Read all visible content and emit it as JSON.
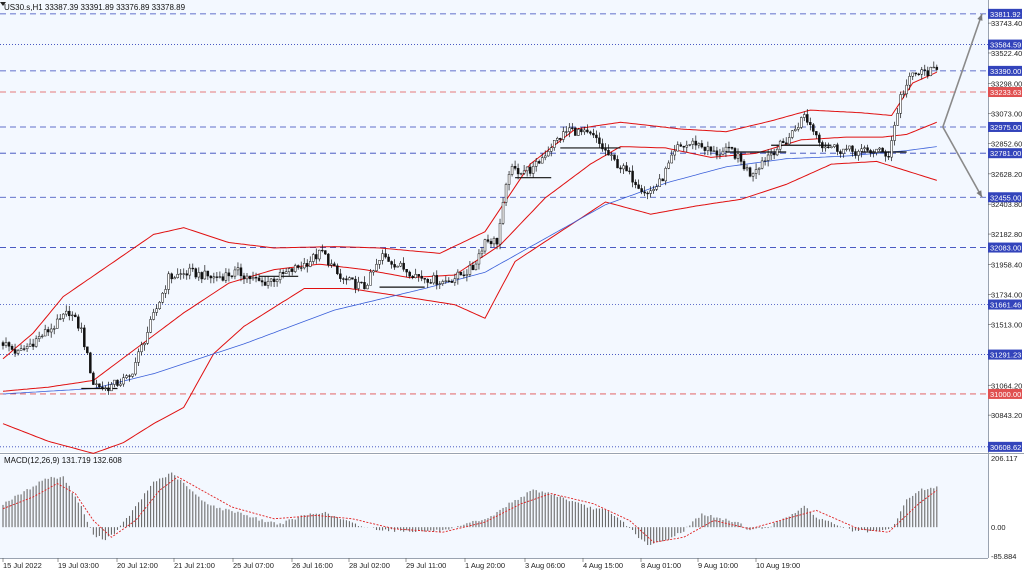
{
  "chart_data": [
    {
      "type": "candlestick",
      "header": "US30.s,H1  33387.39 33391.89 33376.89 33378.89",
      "price_axis_ticks": [
        "33743.40",
        "33522.40",
        "33298.00",
        "33073.00",
        "32852.60",
        "32628.20",
        "32403.80",
        "32182.80",
        "31958.40",
        "31734.00",
        "31513.00",
        "31064.20",
        "30843.20"
      ],
      "ylim": [
        30600,
        33870
      ],
      "time_axis_labels": [
        "15 Jul 2022",
        "19 Jul 03:00",
        "20 Jul 12:00",
        "21 Jul 21:00",
        "25 Jul 07:00",
        "26 Jul 16:00",
        "28 Jul 02:00",
        "29 Jul 11:00",
        "1 Aug 20:00",
        "3 Aug 06:00",
        "4 Aug 15:00",
        "8 Aug 01:00",
        "9 Aug 10:00",
        "10 Aug 19:00"
      ],
      "horizontal_levels": [
        {
          "label": "33811.92",
          "value": 33811.92,
          "style": "dash",
          "color": "#3344bb"
        },
        {
          "label": "33584.59",
          "value": 33584.59,
          "style": "dot",
          "color": "#3344bb"
        },
        {
          "label": "33390.00",
          "value": 33390.0,
          "style": "dash",
          "color": "#3344bb"
        },
        {
          "label": "33233.63",
          "value": 33233.63,
          "style": "dash",
          "color": "#e05050"
        },
        {
          "label": "32975.00",
          "value": 32975.0,
          "style": "dash",
          "color": "#3344bb"
        },
        {
          "label": "32781.00",
          "value": 32781.0,
          "style": "dash",
          "color": "#3344bb"
        },
        {
          "label": "32455.00",
          "value": 32455.0,
          "style": "dash",
          "color": "#3344bb"
        },
        {
          "label": "32083.00",
          "value": 32083.0,
          "style": "dash",
          "color": "#3344bb"
        },
        {
          "label": "31661.46",
          "value": 31661.46,
          "style": "dot",
          "color": "#3344bb"
        },
        {
          "label": "31291.23",
          "value": 31291.23,
          "style": "dot",
          "color": "#3344bb"
        },
        {
          "label": "31000.00",
          "value": 31000.0,
          "style": "dash",
          "color": "#e05050"
        },
        {
          "label": "30608.62",
          "value": 30608.62,
          "style": "dot",
          "color": "#3344bb"
        }
      ],
      "price_keypoints": [
        [
          0,
          31380
        ],
        [
          5,
          31300
        ],
        [
          18,
          31520
        ],
        [
          22,
          31610
        ],
        [
          26,
          31470
        ],
        [
          30,
          31080
        ],
        [
          34,
          31040
        ],
        [
          42,
          31120
        ],
        [
          48,
          31460
        ],
        [
          55,
          31860
        ],
        [
          62,
          31900
        ],
        [
          70,
          31860
        ],
        [
          78,
          31900
        ],
        [
          86,
          31820
        ],
        [
          92,
          31870
        ],
        [
          100,
          31960
        ],
        [
          106,
          32050
        ],
        [
          112,
          31850
        ],
        [
          120,
          31790
        ],
        [
          126,
          32020
        ],
        [
          132,
          31940
        ],
        [
          138,
          31870
        ],
        [
          146,
          31830
        ],
        [
          150,
          31860
        ],
        [
          156,
          31930
        ],
        [
          160,
          32140
        ],
        [
          164,
          32130
        ],
        [
          168,
          32650
        ],
        [
          176,
          32660
        ],
        [
          182,
          32840
        ],
        [
          188,
          32960
        ],
        [
          196,
          32900
        ],
        [
          202,
          32740
        ],
        [
          208,
          32620
        ],
        [
          214,
          32480
        ],
        [
          218,
          32560
        ],
        [
          224,
          32820
        ],
        [
          230,
          32860
        ],
        [
          236,
          32780
        ],
        [
          242,
          32800
        ],
        [
          248,
          32630
        ],
        [
          254,
          32770
        ],
        [
          260,
          32870
        ],
        [
          266,
          33060
        ],
        [
          272,
          32850
        ],
        [
          278,
          32810
        ],
        [
          284,
          32790
        ],
        [
          290,
          32800
        ],
        [
          294,
          32770
        ],
        [
          298,
          33200
        ],
        [
          302,
          33360
        ],
        [
          306,
          33380
        ],
        [
          310,
          33390
        ]
      ],
      "moving_average_keypoints": [
        [
          0,
          31000
        ],
        [
          30,
          31040
        ],
        [
          50,
          31150
        ],
        [
          80,
          31370
        ],
        [
          110,
          31620
        ],
        [
          140,
          31780
        ],
        [
          160,
          31900
        ],
        [
          180,
          32150
        ],
        [
          200,
          32400
        ],
        [
          220,
          32560
        ],
        [
          240,
          32680
        ],
        [
          260,
          32740
        ],
        [
          280,
          32760
        ],
        [
          300,
          32800
        ],
        [
          310,
          32830
        ]
      ],
      "bollinger_keypoints": {
        "middle": [
          [
            0,
            31020
          ],
          [
            15,
            31050
          ],
          [
            30,
            31100
          ],
          [
            45,
            31350
          ],
          [
            60,
            31600
          ],
          [
            75,
            31820
          ],
          [
            90,
            31920
          ],
          [
            105,
            31960
          ],
          [
            120,
            31920
          ],
          [
            135,
            31860
          ],
          [
            150,
            31880
          ],
          [
            165,
            32100
          ],
          [
            180,
            32450
          ],
          [
            195,
            32700
          ],
          [
            205,
            32830
          ],
          [
            220,
            32820
          ],
          [
            235,
            32750
          ],
          [
            250,
            32780
          ],
          [
            265,
            32880
          ],
          [
            280,
            32900
          ],
          [
            292,
            32900
          ],
          [
            300,
            32920
          ],
          [
            310,
            33010
          ]
        ],
        "upper": [
          [
            0,
            31260
          ],
          [
            10,
            31450
          ],
          [
            20,
            31720
          ],
          [
            35,
            31950
          ],
          [
            50,
            32180
          ],
          [
            60,
            32230
          ],
          [
            75,
            32120
          ],
          [
            90,
            32080
          ],
          [
            110,
            32090
          ],
          [
            125,
            32080
          ],
          [
            145,
            32040
          ],
          [
            160,
            32200
          ],
          [
            175,
            32700
          ],
          [
            190,
            32960
          ],
          [
            205,
            33010
          ],
          [
            225,
            32960
          ],
          [
            240,
            32940
          ],
          [
            255,
            33020
          ],
          [
            268,
            33100
          ],
          [
            285,
            33080
          ],
          [
            295,
            33060
          ],
          [
            302,
            33300
          ],
          [
            310,
            33380
          ]
        ],
        "lower": [
          [
            0,
            30780
          ],
          [
            15,
            30650
          ],
          [
            30,
            30560
          ],
          [
            40,
            30640
          ],
          [
            50,
            30780
          ],
          [
            60,
            30900
          ],
          [
            70,
            31300
          ],
          [
            80,
            31500
          ],
          [
            100,
            31780
          ],
          [
            115,
            31780
          ],
          [
            130,
            31730
          ],
          [
            150,
            31660
          ],
          [
            160,
            31560
          ],
          [
            170,
            31980
          ],
          [
            185,
            32200
          ],
          [
            200,
            32420
          ],
          [
            215,
            32330
          ],
          [
            230,
            32390
          ],
          [
            245,
            32440
          ],
          [
            260,
            32550
          ],
          [
            275,
            32700
          ],
          [
            290,
            32720
          ],
          [
            300,
            32650
          ],
          [
            310,
            32580
          ]
        ]
      },
      "box_levels": [
        {
          "from": 26,
          "to": 38,
          "value": 31040
        },
        {
          "from": 85,
          "to": 98,
          "value": 31870
        },
        {
          "from": 125,
          "to": 140,
          "value": 31790
        },
        {
          "from": 170,
          "to": 182,
          "value": 32600
        },
        {
          "from": 185,
          "to": 205,
          "value": 32820
        },
        {
          "from": 240,
          "to": 260,
          "value": 32790
        },
        {
          "from": 255,
          "to": 275,
          "value": 32840
        },
        {
          "from": 285,
          "to": 300,
          "value": 32790
        }
      ],
      "projection": {
        "origin": {
          "bar": 312,
          "value": 32975
        },
        "targets": [
          {
            "bar": 325,
            "value": 33811.92
          },
          {
            "bar": 325,
            "value": 32455
          }
        ]
      },
      "grid": false
    },
    {
      "type": "histogram",
      "header": "MACD(12,26,9) 131.719 132.608",
      "value_axis_ticks": [
        "206.117",
        "0.00",
        "-85.884"
      ],
      "ylim": [
        -85.884,
        206.117
      ],
      "histogram_keypoints": [
        [
          0,
          70
        ],
        [
          8,
          110
        ],
        [
          14,
          145
        ],
        [
          20,
          150
        ],
        [
          26,
          60
        ],
        [
          30,
          -25
        ],
        [
          34,
          -35
        ],
        [
          38,
          -10
        ],
        [
          44,
          60
        ],
        [
          50,
          135
        ],
        [
          56,
          160
        ],
        [
          60,
          130
        ],
        [
          66,
          80
        ],
        [
          72,
          55
        ],
        [
          78,
          45
        ],
        [
          86,
          20
        ],
        [
          92,
          10
        ],
        [
          100,
          35
        ],
        [
          106,
          45
        ],
        [
          112,
          25
        ],
        [
          118,
          5
        ],
        [
          124,
          -5
        ],
        [
          130,
          -10
        ],
        [
          140,
          -12
        ],
        [
          148,
          -10
        ],
        [
          156,
          15
        ],
        [
          162,
          30
        ],
        [
          168,
          70
        ],
        [
          176,
          110
        ],
        [
          182,
          100
        ],
        [
          188,
          80
        ],
        [
          194,
          60
        ],
        [
          200,
          50
        ],
        [
          206,
          15
        ],
        [
          210,
          -20
        ],
        [
          214,
          -55
        ],
        [
          220,
          -40
        ],
        [
          226,
          -10
        ],
        [
          232,
          40
        ],
        [
          238,
          25
        ],
        [
          244,
          15
        ],
        [
          248,
          -10
        ],
        [
          254,
          0
        ],
        [
          260,
          30
        ],
        [
          266,
          60
        ],
        [
          270,
          30
        ],
        [
          276,
          10
        ],
        [
          282,
          -10
        ],
        [
          290,
          -15
        ],
        [
          295,
          -5
        ],
        [
          300,
          80
        ],
        [
          304,
          110
        ],
        [
          310,
          120
        ]
      ],
      "signal_keypoints": [
        [
          0,
          55
        ],
        [
          10,
          90
        ],
        [
          18,
          130
        ],
        [
          24,
          100
        ],
        [
          30,
          20
        ],
        [
          36,
          -30
        ],
        [
          44,
          20
        ],
        [
          52,
          110
        ],
        [
          58,
          150
        ],
        [
          66,
          110
        ],
        [
          76,
          60
        ],
        [
          90,
          25
        ],
        [
          104,
          35
        ],
        [
          116,
          25
        ],
        [
          130,
          -5
        ],
        [
          146,
          -15
        ],
        [
          160,
          15
        ],
        [
          172,
          70
        ],
        [
          182,
          100
        ],
        [
          196,
          70
        ],
        [
          208,
          20
        ],
        [
          216,
          -45
        ],
        [
          226,
          -30
        ],
        [
          236,
          20
        ],
        [
          248,
          -5
        ],
        [
          262,
          30
        ],
        [
          270,
          50
        ],
        [
          284,
          -5
        ],
        [
          294,
          -15
        ],
        [
          304,
          70
        ],
        [
          310,
          110
        ]
      ]
    }
  ]
}
